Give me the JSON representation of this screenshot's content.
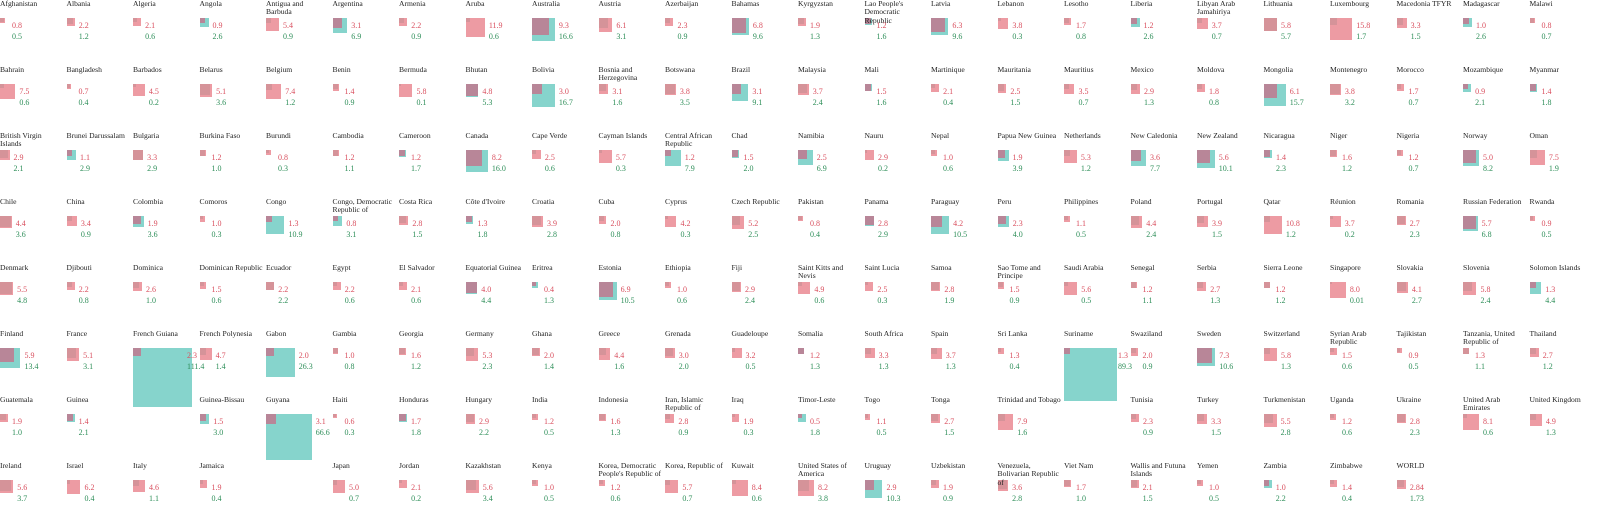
{
  "chart_data": {
    "type": "proportional-square-grid",
    "series": [
      {
        "key": "a",
        "color": "#e8828c"
      },
      {
        "key": "b",
        "color": "#64c8be"
      }
    ],
    "cells": [
      {
        "name": "Afghanistan",
        "a": "0.8",
        "b": "0.5"
      },
      {
        "name": "Albania",
        "a": "2.2",
        "b": "1.2"
      },
      {
        "name": "Algeria",
        "a": "2.1",
        "b": "0.6"
      },
      {
        "name": "Angola",
        "a": "0.9",
        "b": "2.6"
      },
      {
        "name": "Antigua and Barbuda",
        "a": "5.4",
        "b": "0.9"
      },
      {
        "name": "Argentina",
        "a": "3.1",
        "b": "6.9"
      },
      {
        "name": "Armenia",
        "a": "2.2",
        "b": "0.9"
      },
      {
        "name": "Aruba",
        "a": "11.9",
        "b": "0.6"
      },
      {
        "name": "Australia",
        "a": "9.3",
        "b": "16.6"
      },
      {
        "name": "Austria",
        "a": "6.1",
        "b": "3.1"
      },
      {
        "name": "Azerbaijan",
        "a": "2.3",
        "b": "0.9"
      },
      {
        "name": "Bahamas",
        "a": "6.8",
        "b": "9.6"
      },
      {
        "name": "Kyrgyzstan",
        "a": "1.9",
        "b": "1.3"
      },
      {
        "name": "Lao People's Democratic Republic",
        "a": "1.2",
        "b": "1.6"
      },
      {
        "name": "Latvia",
        "a": "6.3",
        "b": "9.6"
      },
      {
        "name": "Lebanon",
        "a": "3.8",
        "b": "0.3"
      },
      {
        "name": "Lesotho",
        "a": "1.7",
        "b": "0.8"
      },
      {
        "name": "Liberia",
        "a": "1.2",
        "b": "2.6"
      },
      {
        "name": "Libyan Arab Jamahiriya",
        "a": "3.7",
        "b": "0.7"
      },
      {
        "name": "Lithuania",
        "a": "5.8",
        "b": "5.7"
      },
      {
        "name": "Luxembourg",
        "a": "15.8",
        "b": "1.7"
      },
      {
        "name": "Macedonia TFYR",
        "a": "3.3",
        "b": "1.5"
      },
      {
        "name": "Madagascar",
        "a": "1.0",
        "b": "2.6"
      },
      {
        "name": "Malawi",
        "a": "0.8",
        "b": "0.7"
      },
      {
        "name": "Bahrain",
        "a": "7.5",
        "b": "0.6"
      },
      {
        "name": "Bangladesh",
        "a": "0.7",
        "b": "0.4"
      },
      {
        "name": "Barbados",
        "a": "4.5",
        "b": "0.2"
      },
      {
        "name": "Belarus",
        "a": "5.1",
        "b": "3.6"
      },
      {
        "name": "Belgium",
        "a": "7.4",
        "b": "1.2"
      },
      {
        "name": "Benin",
        "a": "1.4",
        "b": "0.9"
      },
      {
        "name": "Bermuda",
        "a": "5.8",
        "b": "0.1"
      },
      {
        "name": "Bhutan",
        "a": "4.8",
        "b": "5.3"
      },
      {
        "name": "Bolivia",
        "a": "3.0",
        "b": "16.7"
      },
      {
        "name": "Bosnia and Herzegovina",
        "a": "3.1",
        "b": "1.6"
      },
      {
        "name": "Botswana",
        "a": "3.8",
        "b": "3.5"
      },
      {
        "name": "Brazil",
        "a": "3.1",
        "b": "9.1"
      },
      {
        "name": "Malaysia",
        "a": "3.7",
        "b": "2.4"
      },
      {
        "name": "Mali",
        "a": "1.5",
        "b": "1.6"
      },
      {
        "name": "Martinique",
        "a": "2.1",
        "b": "0.4"
      },
      {
        "name": "Mauritania",
        "a": "2.5",
        "b": "1.5"
      },
      {
        "name": "Mauritius",
        "a": "3.5",
        "b": "0.7"
      },
      {
        "name": "Mexico",
        "a": "2.9",
        "b": "1.3"
      },
      {
        "name": "Moldova",
        "a": "1.8",
        "b": "0.8"
      },
      {
        "name": "Mongolia",
        "a": "6.1",
        "b": "15.7"
      },
      {
        "name": "Montenegro",
        "a": "3.8",
        "b": "3.2"
      },
      {
        "name": "Morocco",
        "a": "1.7",
        "b": "0.7"
      },
      {
        "name": "Mozambique",
        "a": "0.9",
        "b": "2.1"
      },
      {
        "name": "Myanmar",
        "a": "1.4",
        "b": "1.8"
      },
      {
        "name": "British Virgin Islands",
        "a": "2.9",
        "b": "2.1"
      },
      {
        "name": "Brunei Darussalam",
        "a": "1.1",
        "b": "2.9"
      },
      {
        "name": "Bulgaria",
        "a": "3.3",
        "b": "2.9"
      },
      {
        "name": "Burkina Faso",
        "a": "1.2",
        "b": "1.0"
      },
      {
        "name": "Burundi",
        "a": "0.8",
        "b": "0.3"
      },
      {
        "name": "Cambodia",
        "a": "1.2",
        "b": "1.1"
      },
      {
        "name": "Cameroon",
        "a": "1.2",
        "b": "1.7"
      },
      {
        "name": "Canada",
        "a": "8.2",
        "b": "16.0"
      },
      {
        "name": "Cape Verde",
        "a": "2.5",
        "b": "0.6"
      },
      {
        "name": "Cayman Islands",
        "a": "5.7",
        "b": "0.3"
      },
      {
        "name": "Central African Republic",
        "a": "1.2",
        "b": "7.9"
      },
      {
        "name": "Chad",
        "a": "1.5",
        "b": "2.0"
      },
      {
        "name": "Namibia",
        "a": "2.5",
        "b": "6.9"
      },
      {
        "name": "Nauru",
        "a": "2.9",
        "b": "0.2"
      },
      {
        "name": "Nepal",
        "a": "1.0",
        "b": "0.6"
      },
      {
        "name": "Papua New Guinea",
        "a": "1.9",
        "b": "3.9"
      },
      {
        "name": "Netherlands",
        "a": "5.3",
        "b": "1.2"
      },
      {
        "name": "New Caledonia",
        "a": "3.6",
        "b": "7.7"
      },
      {
        "name": "New Zealand",
        "a": "5.6",
        "b": "10.1"
      },
      {
        "name": "Nicaragua",
        "a": "1.4",
        "b": "2.3"
      },
      {
        "name": "Niger",
        "a": "1.6",
        "b": "1.2"
      },
      {
        "name": "Nigeria",
        "a": "1.2",
        "b": "0.7"
      },
      {
        "name": "Norway",
        "a": "5.0",
        "b": "8.2"
      },
      {
        "name": "Oman",
        "a": "7.5",
        "b": "1.9"
      },
      {
        "name": "Chile",
        "a": "4.4",
        "b": "3.6"
      },
      {
        "name": "China",
        "a": "3.4",
        "b": "0.9"
      },
      {
        "name": "Colombia",
        "a": "1.9",
        "b": "3.6"
      },
      {
        "name": "Comoros",
        "a": "1.0",
        "b": "0.3"
      },
      {
        "name": "Congo",
        "a": "1.3",
        "b": "10.9"
      },
      {
        "name": "Congo, Democratic Republic of",
        "a": "0.8",
        "b": "3.1"
      },
      {
        "name": "Costa Rica",
        "a": "2.8",
        "b": "1.5"
      },
      {
        "name": "Côte d'Ivoire",
        "a": "1.3",
        "b": "1.8"
      },
      {
        "name": "Croatia",
        "a": "3.9",
        "b": "2.8"
      },
      {
        "name": "Cuba",
        "a": "2.0",
        "b": "0.8"
      },
      {
        "name": "Cyprus",
        "a": "4.2",
        "b": "0.3"
      },
      {
        "name": "Czech Republic",
        "a": "5.2",
        "b": "2.5"
      },
      {
        "name": "Pakistan",
        "a": "0.8",
        "b": "0.4"
      },
      {
        "name": "Panama",
        "a": "2.8",
        "b": "2.9"
      },
      {
        "name": "Paraguay",
        "a": "4.2",
        "b": "10.5"
      },
      {
        "name": "Peru",
        "a": "2.3",
        "b": "4.0"
      },
      {
        "name": "Philippines",
        "a": "1.1",
        "b": "0.5"
      },
      {
        "name": "Poland",
        "a": "4.4",
        "b": "2.4"
      },
      {
        "name": "Portugal",
        "a": "3.9",
        "b": "1.5"
      },
      {
        "name": "Qatar",
        "a": "10.8",
        "b": "1.2"
      },
      {
        "name": "Réunion",
        "a": "3.7",
        "b": "0.2"
      },
      {
        "name": "Romania",
        "a": "2.7",
        "b": "2.3"
      },
      {
        "name": "Russian Federation",
        "a": "5.7",
        "b": "6.8"
      },
      {
        "name": "Rwanda",
        "a": "0.9",
        "b": "0.5"
      },
      {
        "name": "Denmark",
        "a": "5.5",
        "b": "4.8"
      },
      {
        "name": "Djibouti",
        "a": "2.2",
        "b": "0.8"
      },
      {
        "name": "Dominica",
        "a": "2.6",
        "b": "1.0"
      },
      {
        "name": "Dominican Republic",
        "a": "1.5",
        "b": "0.6"
      },
      {
        "name": "Ecuador",
        "a": "2.2",
        "b": "2.2"
      },
      {
        "name": "Egypt",
        "a": "2.2",
        "b": "0.6"
      },
      {
        "name": "El Salvador",
        "a": "2.1",
        "b": "0.6"
      },
      {
        "name": "Equatorial Guinea",
        "a": "4.0",
        "b": "4.4"
      },
      {
        "name": "Eritrea",
        "a": "0.4",
        "b": "1.3"
      },
      {
        "name": "Estonia",
        "a": "6.9",
        "b": "10.5"
      },
      {
        "name": "Ethiopia",
        "a": "1.0",
        "b": "0.6"
      },
      {
        "name": "Fiji",
        "a": "2.9",
        "b": "2.4"
      },
      {
        "name": "Saint Kitts and Nevis",
        "a": "4.9",
        "b": "0.6"
      },
      {
        "name": "Saint Lucia",
        "a": "2.5",
        "b": "0.3"
      },
      {
        "name": "Samoa",
        "a": "2.8",
        "b": "1.9"
      },
      {
        "name": "Sao Tome and Principe",
        "a": "1.5",
        "b": "0.9"
      },
      {
        "name": "Saudi Arabia",
        "a": "5.6",
        "b": "0.5"
      },
      {
        "name": "Senegal",
        "a": "1.2",
        "b": "1.1"
      },
      {
        "name": "Serbia",
        "a": "2.7",
        "b": "1.3"
      },
      {
        "name": "Sierra Leone",
        "a": "1.2",
        "b": "1.2"
      },
      {
        "name": "Singapore",
        "a": "8.0",
        "b": "0.01"
      },
      {
        "name": "Slovakia",
        "a": "4.1",
        "b": "2.7"
      },
      {
        "name": "Slovenia",
        "a": "5.8",
        "b": "2.4"
      },
      {
        "name": "Solomon Islands",
        "a": "1.3",
        "b": "4.4"
      },
      {
        "name": "Finland",
        "a": "5.9",
        "b": "13.4"
      },
      {
        "name": "France",
        "a": "5.1",
        "b": "3.1"
      },
      {
        "name": "French Guiana",
        "a": "2.3",
        "b": "111.4"
      },
      {
        "name": "French Polynesia",
        "a": "4.7",
        "b": "1.4"
      },
      {
        "name": "Gabon",
        "a": "2.0",
        "b": "26.3"
      },
      {
        "name": "Gambia",
        "a": "1.0",
        "b": "0.8"
      },
      {
        "name": "Georgia",
        "a": "1.6",
        "b": "1.2"
      },
      {
        "name": "Germany",
        "a": "5.3",
        "b": "2.3"
      },
      {
        "name": "Ghana",
        "a": "2.0",
        "b": "1.4"
      },
      {
        "name": "Greece",
        "a": "4.4",
        "b": "1.6"
      },
      {
        "name": "Grenada",
        "a": "3.0",
        "b": "2.0"
      },
      {
        "name": "Guadeloupe",
        "a": "3.2",
        "b": "0.5"
      },
      {
        "name": "Somalia",
        "a": "1.2",
        "b": "1.3"
      },
      {
        "name": "South Africa",
        "a": "3.3",
        "b": "1.3"
      },
      {
        "name": "Spain",
        "a": "3.7",
        "b": "1.3"
      },
      {
        "name": "Sri Lanka",
        "a": "1.3",
        "b": "0.4"
      },
      {
        "name": "Suriname",
        "a": "1.3",
        "b": "89.3"
      },
      {
        "name": "Swaziland",
        "a": "2.0",
        "b": "0.9"
      },
      {
        "name": "Sweden",
        "a": "7.3",
        "b": "10.6"
      },
      {
        "name": "Switzerland",
        "a": "5.8",
        "b": "1.3"
      },
      {
        "name": "Syrian Arab Republic",
        "a": "1.5",
        "b": "0.6"
      },
      {
        "name": "Tajikistan",
        "a": "0.9",
        "b": "0.5"
      },
      {
        "name": "Tanzania, United Republic of",
        "a": "1.3",
        "b": "1.1"
      },
      {
        "name": "Thailand",
        "a": "2.7",
        "b": "1.2"
      },
      {
        "name": "Guatemala",
        "a": "1.9",
        "b": "1.0"
      },
      {
        "name": "Guinea",
        "a": "1.4",
        "b": "2.1"
      },
      {
        "name": "",
        "a": "",
        "b": ""
      },
      {
        "name": "Guinea-Bissau",
        "a": "1.5",
        "b": "3.0"
      },
      {
        "name": "Guyana",
        "a": "3.1",
        "b": "66.6"
      },
      {
        "name": "Haiti",
        "a": "0.6",
        "b": "0.3"
      },
      {
        "name": "Honduras",
        "a": "1.7",
        "b": "1.8"
      },
      {
        "name": "Hungary",
        "a": "2.9",
        "b": "2.2"
      },
      {
        "name": "India",
        "a": "1.2",
        "b": "0.5"
      },
      {
        "name": "Indonesia",
        "a": "1.6",
        "b": "1.3"
      },
      {
        "name": "Iran, Islamic Republic of",
        "a": "2.8",
        "b": "0.9"
      },
      {
        "name": "Iraq",
        "a": "1.9",
        "b": "0.3"
      },
      {
        "name": "Timor-Leste",
        "a": "0.5",
        "b": "1.8"
      },
      {
        "name": "Togo",
        "a": "1.1",
        "b": "0.5"
      },
      {
        "name": "Tonga",
        "a": "2.7",
        "b": "1.5"
      },
      {
        "name": "Trinidad and Tobago",
        "a": "7.9",
        "b": "1.6"
      },
      {
        "name": "",
        "a": "",
        "b": ""
      },
      {
        "name": "Tunisia",
        "a": "2.3",
        "b": "0.9"
      },
      {
        "name": "Turkey",
        "a": "3.3",
        "b": "1.5"
      },
      {
        "name": "Turkmenistan",
        "a": "5.5",
        "b": "2.8"
      },
      {
        "name": "Uganda",
        "a": "1.2",
        "b": "0.6"
      },
      {
        "name": "Ukraine",
        "a": "2.8",
        "b": "2.3"
      },
      {
        "name": "United Arab Emirates",
        "a": "8.1",
        "b": "0.6"
      },
      {
        "name": "United Kingdom",
        "a": "4.9",
        "b": "1.3"
      },
      {
        "name": "Ireland",
        "a": "5.6",
        "b": "3.7"
      },
      {
        "name": "Israel",
        "a": "6.2",
        "b": "0.4"
      },
      {
        "name": "Italy",
        "a": "4.6",
        "b": "1.1"
      },
      {
        "name": "Jamaica",
        "a": "1.9",
        "b": "0.4"
      },
      {
        "name": "",
        "a": "",
        "b": ""
      },
      {
        "name": "Japan",
        "a": "5.0",
        "b": "0.7"
      },
      {
        "name": "Jordan",
        "a": "2.1",
        "b": "0.2"
      },
      {
        "name": "Kazakhstan",
        "a": "5.6",
        "b": "3.4"
      },
      {
        "name": "Kenya",
        "a": "1.0",
        "b": "0.5"
      },
      {
        "name": "Korea, Democratic People's Republic of",
        "a": "1.2",
        "b": "0.6"
      },
      {
        "name": "Korea, Republic of",
        "a": "5.7",
        "b": "0.7"
      },
      {
        "name": "Kuwait",
        "a": "8.4",
        "b": "0.6"
      },
      {
        "name": "United States of America",
        "a": "8.2",
        "b": "3.8"
      },
      {
        "name": "Uruguay",
        "a": "2.9",
        "b": "10.3"
      },
      {
        "name": "Uzbekistan",
        "a": "1.9",
        "b": "0.9"
      },
      {
        "name": "Venezuela, Bolivarian Republic of",
        "a": "3.6",
        "b": "2.8"
      },
      {
        "name": "Viet Nam",
        "a": "1.7",
        "b": "1.0"
      },
      {
        "name": "Wallis and Futuna Islands",
        "a": "2.1",
        "b": "1.5"
      },
      {
        "name": "Yemen",
        "a": "1.0",
        "b": "0.5"
      },
      {
        "name": "Zambia",
        "a": "1.0",
        "b": "2.2"
      },
      {
        "name": "Zimbabwe",
        "a": "1.4",
        "b": "0.4"
      },
      {
        "name": "WORLD",
        "a": "2.84",
        "b": "1.73"
      }
    ]
  }
}
